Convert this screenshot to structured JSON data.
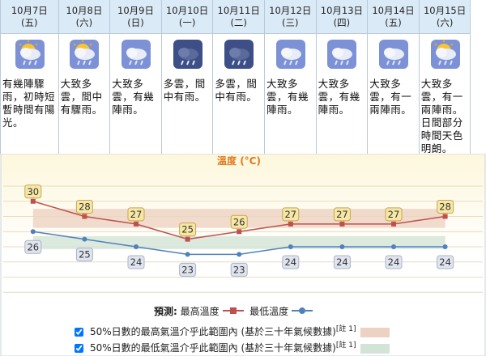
{
  "days": [
    {
      "date": "10月7日",
      "weekday": "(五)",
      "description": "有幾陣驟雨，初時短暫時間有陽光。"
    },
    {
      "date": "10月8日",
      "weekday": "(六)",
      "description": "大致多雲，間中有驟雨。"
    },
    {
      "date": "10月9日",
      "weekday": "(日)",
      "description": "大致多雲，有幾陣雨。"
    },
    {
      "date": "10月10日",
      "weekday": "(一)",
      "description": "多雲，間中有雨。"
    },
    {
      "date": "10月11日",
      "weekday": "(二)",
      "description": "多雲，間中有雨。"
    },
    {
      "date": "10月12日",
      "weekday": "(三)",
      "description": "大致多雲，有幾陣雨。"
    },
    {
      "date": "10月13日",
      "weekday": "(四)",
      "description": "大致多雲，有幾陣雨。"
    },
    {
      "date": "10月14日",
      "weekday": "(五)",
      "description": "大致多雲，有一兩陣雨。"
    },
    {
      "date": "10月15日",
      "weekday": "(六)",
      "description": "大致多雲，有一兩陣雨。日間部分時間天色明朗。"
    }
  ],
  "chart_data": {
    "type": "line",
    "title": "溫度 (°C)",
    "series": [
      {
        "name": "最高溫度",
        "color": "#c0504d",
        "values": [
          30,
          28,
          27,
          25,
          26,
          27,
          27,
          27,
          28
        ]
      },
      {
        "name": "最低溫度",
        "color": "#4f81bd",
        "values": [
          26,
          25,
          24,
          23,
          23,
          24,
          24,
          24,
          24
        ]
      }
    ],
    "bands": [
      {
        "label": "50%日數的最高氣溫介乎此範圍內 (基於三十年氣候數據)",
        "note": "[註 1]",
        "color": "#ecd2c2",
        "range": [
          26.5,
          29
        ]
      },
      {
        "label": "50%日數的最低氣溫介乎此範圍內 (基於三十年氣候數據)",
        "note": "[註 1]",
        "color": "#d3e3d6",
        "range": [
          23.7,
          25.4
        ]
      }
    ],
    "legend_prefix": "預測",
    "ylim": [
      17.6,
      33.6
    ],
    "yticks": [
      18,
      20,
      22,
      24,
      26,
      28,
      30,
      32
    ],
    "grid": true
  }
}
